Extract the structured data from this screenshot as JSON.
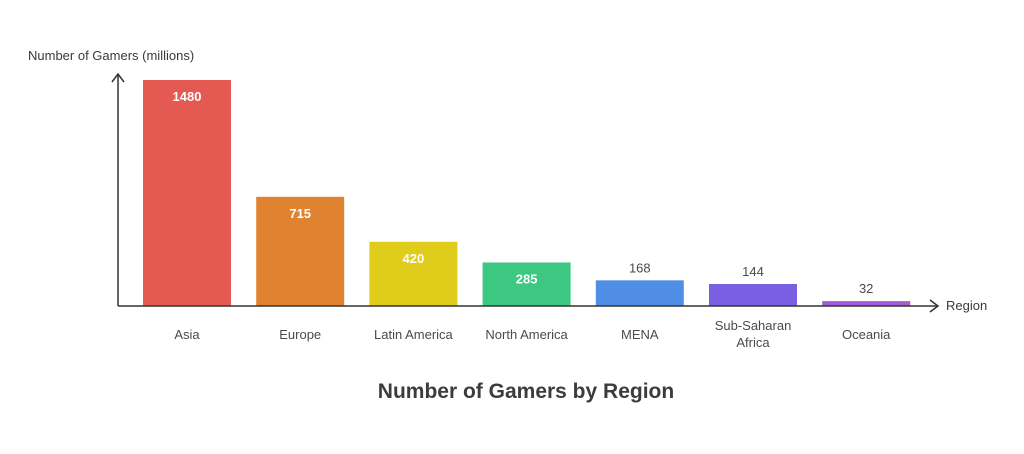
{
  "chart_data": {
    "type": "bar",
    "title": "Number of Gamers by Region",
    "xlabel": "Region",
    "ylabel": "Number of Gamers (millions)",
    "categories": [
      "Asia",
      "Europe",
      "Latin America",
      "North America",
      "MENA",
      "Sub-Saharan Africa",
      "Oceania"
    ],
    "values": [
      1480,
      715,
      420,
      285,
      168,
      144,
      32
    ],
    "colors": [
      "#e55953",
      "#df8331",
      "#dfcc1b",
      "#3cc881",
      "#4f8ee4",
      "#7a5fe2",
      "#a35cd7"
    ],
    "ylim": [
      0,
      1480
    ],
    "grid": false,
    "legend": "none"
  }
}
